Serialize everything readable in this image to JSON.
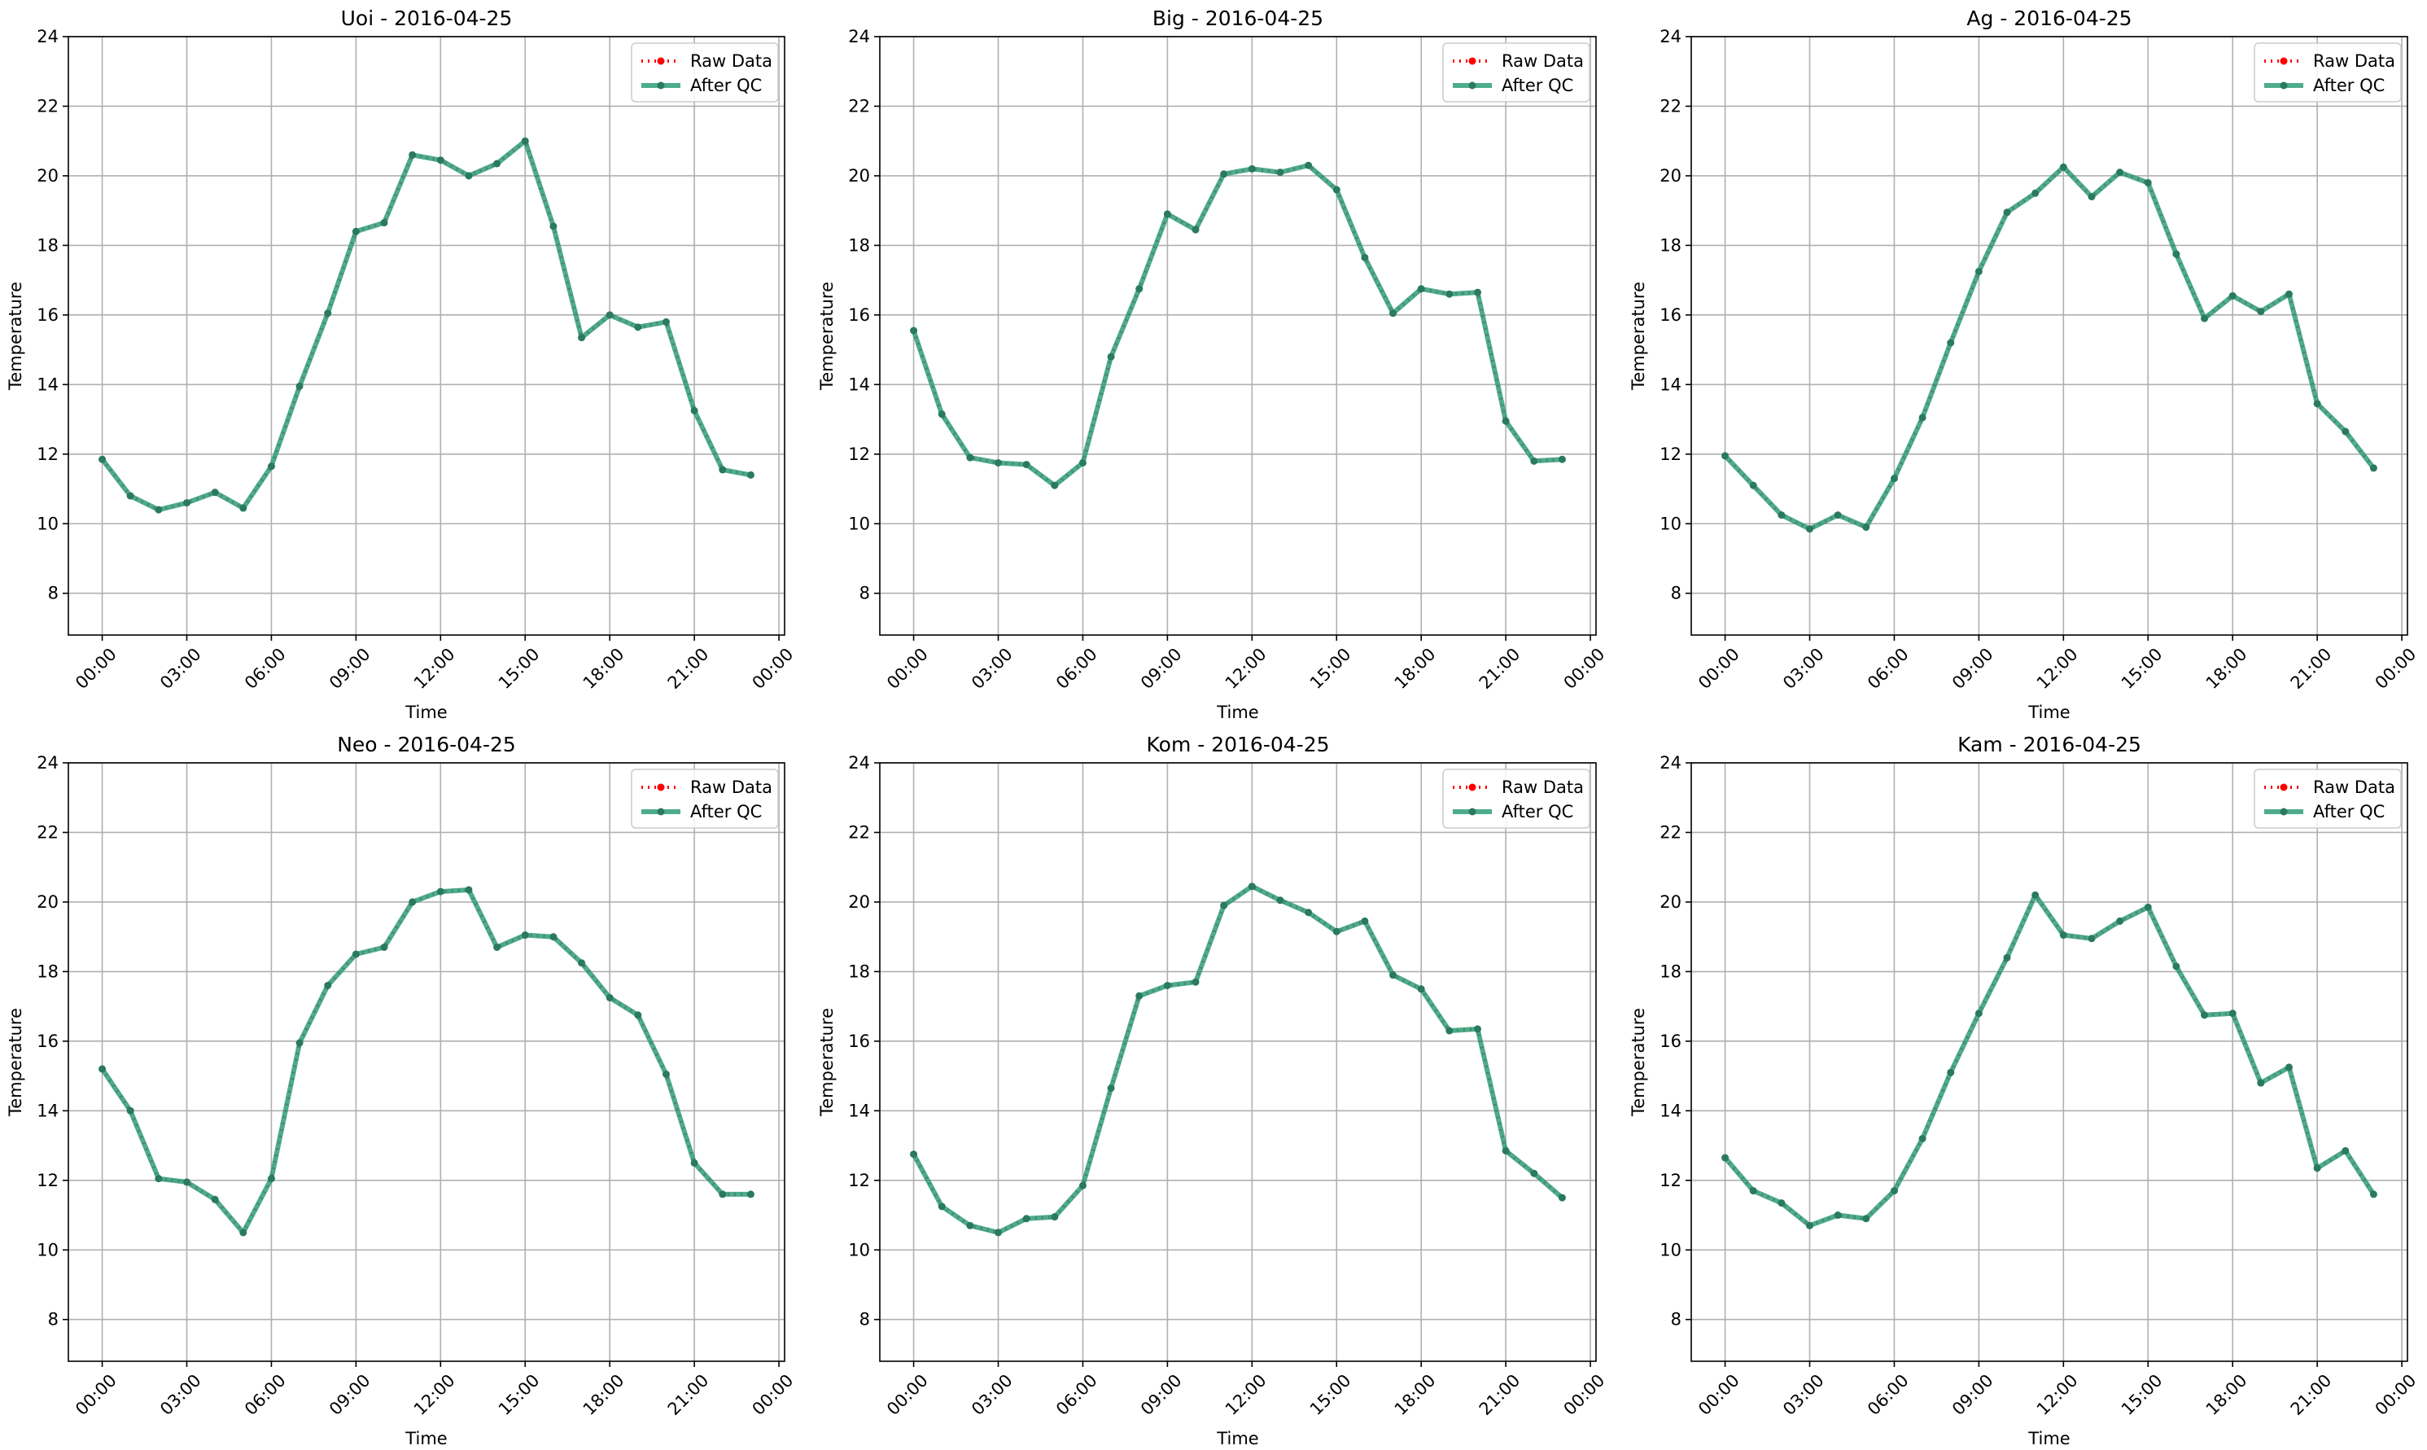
{
  "colors": {
    "raw": "#ff0000",
    "qc": "#2e9e78",
    "marker_qc": "#2a7a5e"
  },
  "chart_data": [
    {
      "type": "line",
      "title": "Uoi - 2016-04-25",
      "xlabel": "Time",
      "ylabel": "Temperature",
      "x_ticks": [
        "00:00",
        "03:00",
        "06:00",
        "09:00",
        "12:00",
        "15:00",
        "18:00",
        "21:00",
        "00:00"
      ],
      "y_ticks": [
        "8",
        "10",
        "12",
        "14",
        "16",
        "18",
        "20",
        "22",
        "24"
      ],
      "xlim_hours": [
        -1.2,
        24.2
      ],
      "ylim": [
        6.8,
        24
      ],
      "grid": true,
      "legend_position": "top-right",
      "x_hours": [
        0,
        1,
        2,
        3,
        4,
        5,
        6,
        7,
        8,
        9,
        10,
        11,
        12,
        13,
        14,
        15,
        16,
        17,
        18,
        19,
        20,
        21,
        22,
        23
      ],
      "series": [
        {
          "name": "Raw Data",
          "values": [
            11.85,
            10.8,
            10.4,
            10.6,
            10.9,
            10.45,
            11.65,
            13.95,
            16.05,
            18.4,
            18.65,
            20.6,
            20.45,
            20.0,
            20.35,
            21.0,
            18.55,
            15.35,
            16.0,
            15.65,
            15.8,
            13.25,
            11.55,
            11.4
          ]
        },
        {
          "name": "After QC",
          "values": [
            11.85,
            10.8,
            10.4,
            10.6,
            10.9,
            10.45,
            11.65,
            13.95,
            16.05,
            18.4,
            18.65,
            20.6,
            20.45,
            20.0,
            20.35,
            21.0,
            18.55,
            15.35,
            16.0,
            15.65,
            15.8,
            13.25,
            11.55,
            11.4
          ]
        }
      ]
    },
    {
      "type": "line",
      "title": "Big - 2016-04-25",
      "xlabel": "Time",
      "ylabel": "Temperature",
      "x_ticks": [
        "00:00",
        "03:00",
        "06:00",
        "09:00",
        "12:00",
        "15:00",
        "18:00",
        "21:00",
        "00:00"
      ],
      "y_ticks": [
        "8",
        "10",
        "12",
        "14",
        "16",
        "18",
        "20",
        "22",
        "24"
      ],
      "xlim_hours": [
        -1.2,
        24.2
      ],
      "ylim": [
        6.8,
        24
      ],
      "grid": true,
      "legend_position": "top-right",
      "x_hours": [
        0,
        1,
        2,
        3,
        4,
        5,
        6,
        7,
        8,
        9,
        10,
        11,
        12,
        13,
        14,
        15,
        16,
        17,
        18,
        19,
        20,
        21,
        22,
        23
      ],
      "series": [
        {
          "name": "Raw Data",
          "values": [
            15.55,
            13.15,
            11.9,
            11.75,
            11.7,
            11.1,
            11.75,
            14.8,
            16.75,
            18.9,
            18.45,
            20.05,
            20.2,
            20.1,
            20.3,
            19.6,
            17.65,
            16.05,
            16.75,
            16.6,
            16.65,
            12.95,
            11.8,
            11.85
          ]
        },
        {
          "name": "After QC",
          "values": [
            15.55,
            13.15,
            11.9,
            11.75,
            11.7,
            11.1,
            11.75,
            14.8,
            16.75,
            18.9,
            18.45,
            20.05,
            20.2,
            20.1,
            20.3,
            19.6,
            17.65,
            16.05,
            16.75,
            16.6,
            16.65,
            12.95,
            11.8,
            11.85
          ]
        }
      ]
    },
    {
      "type": "line",
      "title": "Ag - 2016-04-25",
      "xlabel": "Time",
      "ylabel": "Temperature",
      "x_ticks": [
        "00:00",
        "03:00",
        "06:00",
        "09:00",
        "12:00",
        "15:00",
        "18:00",
        "21:00",
        "00:00"
      ],
      "y_ticks": [
        "8",
        "10",
        "12",
        "14",
        "16",
        "18",
        "20",
        "22",
        "24"
      ],
      "xlim_hours": [
        -1.2,
        24.2
      ],
      "ylim": [
        6.8,
        24
      ],
      "grid": true,
      "legend_position": "top-right",
      "x_hours": [
        0,
        1,
        2,
        3,
        4,
        5,
        6,
        7,
        8,
        9,
        10,
        11,
        12,
        13,
        14,
        15,
        16,
        17,
        18,
        19,
        20,
        21,
        22,
        23
      ],
      "series": [
        {
          "name": "Raw Data",
          "values": [
            11.95,
            11.1,
            10.25,
            9.85,
            10.25,
            9.9,
            11.3,
            13.05,
            15.2,
            17.25,
            18.95,
            19.5,
            20.25,
            19.4,
            20.1,
            19.8,
            17.75,
            15.9,
            16.55,
            16.1,
            16.6,
            13.45,
            12.65,
            11.6
          ]
        },
        {
          "name": "After QC",
          "values": [
            11.95,
            11.1,
            10.25,
            9.85,
            10.25,
            9.9,
            11.3,
            13.05,
            15.2,
            17.25,
            18.95,
            19.5,
            20.25,
            19.4,
            20.1,
            19.8,
            17.75,
            15.9,
            16.55,
            16.1,
            16.6,
            13.45,
            12.65,
            11.6
          ]
        }
      ]
    },
    {
      "type": "line",
      "title": "Neo - 2016-04-25",
      "xlabel": "Time",
      "ylabel": "Temperature",
      "x_ticks": [
        "00:00",
        "03:00",
        "06:00",
        "09:00",
        "12:00",
        "15:00",
        "18:00",
        "21:00",
        "00:00"
      ],
      "y_ticks": [
        "8",
        "10",
        "12",
        "14",
        "16",
        "18",
        "20",
        "22",
        "24"
      ],
      "xlim_hours": [
        -1.2,
        24.2
      ],
      "ylim": [
        6.8,
        24
      ],
      "grid": true,
      "legend_position": "top-right",
      "x_hours": [
        0,
        1,
        2,
        3,
        4,
        5,
        6,
        7,
        8,
        9,
        10,
        11,
        12,
        13,
        14,
        15,
        16,
        17,
        18,
        19,
        20,
        21,
        22,
        23
      ],
      "series": [
        {
          "name": "Raw Data",
          "values": [
            15.2,
            14.0,
            12.05,
            11.95,
            11.45,
            10.5,
            12.05,
            15.95,
            17.6,
            18.5,
            18.7,
            20.0,
            20.3,
            20.35,
            18.7,
            19.05,
            19.0,
            18.25,
            17.25,
            16.75,
            15.05,
            12.5,
            11.6,
            11.6
          ]
        },
        {
          "name": "After QC",
          "values": [
            15.2,
            14.0,
            12.05,
            11.95,
            11.45,
            10.5,
            12.05,
            15.95,
            17.6,
            18.5,
            18.7,
            20.0,
            20.3,
            20.35,
            18.7,
            19.05,
            19.0,
            18.25,
            17.25,
            16.75,
            15.05,
            12.5,
            11.6,
            11.6
          ]
        }
      ]
    },
    {
      "type": "line",
      "title": "Kom - 2016-04-25",
      "xlabel": "Time",
      "ylabel": "Temperature",
      "x_ticks": [
        "00:00",
        "03:00",
        "06:00",
        "09:00",
        "12:00",
        "15:00",
        "18:00",
        "21:00",
        "00:00"
      ],
      "y_ticks": [
        "8",
        "10",
        "12",
        "14",
        "16",
        "18",
        "20",
        "22",
        "24"
      ],
      "xlim_hours": [
        -1.2,
        24.2
      ],
      "ylim": [
        6.8,
        24
      ],
      "grid": true,
      "legend_position": "top-right",
      "x_hours": [
        0,
        1,
        2,
        3,
        4,
        5,
        6,
        7,
        8,
        9,
        10,
        11,
        12,
        13,
        14,
        15,
        16,
        17,
        18,
        19,
        20,
        21,
        22,
        23
      ],
      "series": [
        {
          "name": "Raw Data",
          "values": [
            12.75,
            11.25,
            10.7,
            10.5,
            10.9,
            10.95,
            11.85,
            14.65,
            17.3,
            17.6,
            17.7,
            19.9,
            20.45,
            20.05,
            19.7,
            19.15,
            19.45,
            17.9,
            17.5,
            16.3,
            16.35,
            12.85,
            12.2,
            11.5
          ]
        },
        {
          "name": "After QC",
          "values": [
            12.75,
            11.25,
            10.7,
            10.5,
            10.9,
            10.95,
            11.85,
            14.65,
            17.3,
            17.6,
            17.7,
            19.9,
            20.45,
            20.05,
            19.7,
            19.15,
            19.45,
            17.9,
            17.5,
            16.3,
            16.35,
            12.85,
            12.2,
            11.5
          ]
        }
      ]
    },
    {
      "type": "line",
      "title": "Kam - 2016-04-25",
      "xlabel": "Time",
      "ylabel": "Temperature",
      "x_ticks": [
        "00:00",
        "03:00",
        "06:00",
        "09:00",
        "12:00",
        "15:00",
        "18:00",
        "21:00",
        "00:00"
      ],
      "y_ticks": [
        "8",
        "10",
        "12",
        "14",
        "16",
        "18",
        "20",
        "22",
        "24"
      ],
      "xlim_hours": [
        -1.2,
        24.2
      ],
      "ylim": [
        6.8,
        24
      ],
      "grid": true,
      "legend_position": "top-right",
      "x_hours": [
        0,
        1,
        2,
        3,
        4,
        5,
        6,
        7,
        8,
        9,
        10,
        11,
        12,
        13,
        14,
        15,
        16,
        17,
        18,
        19,
        20,
        21,
        22,
        23
      ],
      "series": [
        {
          "name": "Raw Data",
          "values": [
            12.65,
            11.7,
            11.35,
            10.7,
            11.0,
            10.9,
            11.7,
            13.2,
            15.1,
            16.8,
            18.4,
            20.2,
            19.05,
            18.95,
            19.45,
            19.85,
            18.15,
            16.75,
            16.8,
            14.8,
            15.25,
            12.35,
            12.85,
            11.6
          ]
        },
        {
          "name": "After QC",
          "values": [
            12.65,
            11.7,
            11.35,
            10.7,
            11.0,
            10.9,
            11.7,
            13.2,
            15.1,
            16.8,
            18.4,
            20.2,
            19.05,
            18.95,
            19.45,
            19.85,
            18.15,
            16.75,
            16.8,
            14.8,
            15.25,
            12.35,
            12.85,
            11.6
          ]
        }
      ]
    }
  ]
}
